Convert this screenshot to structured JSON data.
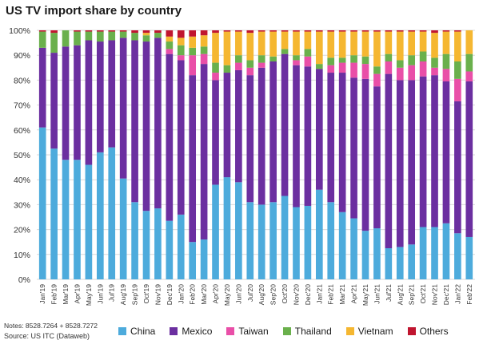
{
  "chart_data": {
    "type": "bar",
    "stacked": true,
    "title": "US TV import share by country",
    "y_ticks": [
      "0%",
      "10%",
      "20%",
      "30%",
      "40%",
      "50%",
      "60%",
      "70%",
      "80%",
      "90%",
      "100%"
    ],
    "ylim": [
      0,
      100
    ],
    "grid": true,
    "legend_position": "bottom",
    "categories": [
      "Jan'19",
      "Feb'19",
      "Mar'19",
      "Apr'19",
      "May'19",
      "Jun'19",
      "Jul'19",
      "Aug'19",
      "Sep'19",
      "Oct'19",
      "Nov'19",
      "Dec'19",
      "Jan'20",
      "Feb'20",
      "Mar'20",
      "Apr'20",
      "May'20",
      "Jun'20",
      "Jul'20",
      "Aug'20",
      "Sep'20",
      "Oct'20",
      "Nov'20",
      "Dec'20",
      "Jan'21",
      "Feb'21",
      "Mar'21",
      "Apr'21",
      "May'21",
      "Jun'21",
      "Jul'21",
      "Aug'21",
      "Sep'21",
      "Oct'21",
      "Nov'21",
      "Dec'21",
      "Jan'22",
      "Feb'22"
    ],
    "visible_x_labels": [
      "Jan'19",
      "Feb'19",
      "Mar'19",
      "Apr'19",
      "May'19",
      "Jun'19",
      "Jul'19",
      "Aug'19",
      "Sep'19",
      "Oct'19",
      "Nov'19",
      "Dec'19",
      "Jan'20",
      "Feb'20",
      "Mar'20",
      "Apr'20",
      "May'20",
      "Jun'20",
      "Jul'20",
      "Aug'20",
      "Sep'20",
      "Oct'20",
      "Nov'20",
      "Dec'20",
      "Jan'21",
      "Feb'21",
      "Mar'21",
      "Apr'21",
      "May'21",
      "Jun'21",
      "Jul'21",
      "Aug'21",
      "Sep'21",
      "Oct'21",
      "Nov'21",
      "Dec'21",
      "Jan'22",
      "Feb'22"
    ],
    "series": [
      {
        "name": "China",
        "color": "#4dabdc",
        "values": [
          61,
          52.5,
          48,
          48,
          46,
          51,
          53,
          40.5,
          31,
          27.5,
          28.5,
          23.5,
          26,
          15,
          16,
          38,
          41,
          39,
          31,
          30,
          31,
          33.5,
          29,
          29.5,
          36,
          31,
          27,
          24.5,
          19.5,
          20.5,
          12.5,
          13,
          14,
          21,
          21,
          22.5,
          18.5,
          17
        ]
      },
      {
        "name": "Mexico",
        "color": "#6b2fa0",
        "values": [
          32,
          38.5,
          45.5,
          46,
          50,
          44.5,
          43,
          56.5,
          65,
          68,
          68.5,
          67,
          62,
          67,
          70.5,
          42,
          42,
          45,
          51,
          55,
          56.5,
          57,
          57,
          56,
          48.5,
          52,
          56,
          56.5,
          61,
          57,
          70,
          67,
          66,
          60.5,
          61,
          57,
          53,
          62.5
        ]
      },
      {
        "name": "Taiwan",
        "color": "#e94fa8",
        "values": [
          0,
          0,
          0,
          0,
          0,
          0,
          0,
          0,
          0,
          0,
          0,
          2,
          2,
          8,
          4,
          3,
          0,
          3,
          3,
          2,
          0,
          0,
          2,
          4,
          0,
          3,
          4,
          6,
          6,
          5,
          5,
          5,
          6,
          6,
          3,
          5,
          9,
          4
        ]
      },
      {
        "name": "Thailand",
        "color": "#6ab04c",
        "values": [
          6.5,
          8,
          6.5,
          5.5,
          3.5,
          4,
          3.5,
          2.5,
          3,
          2.5,
          2,
          3,
          4,
          3,
          3,
          4,
          3,
          3,
          3,
          3,
          2,
          2,
          2,
          3,
          2,
          3,
          2,
          3,
          3,
          3,
          3,
          3,
          4,
          4,
          4,
          6,
          7,
          7
        ]
      },
      {
        "name": "Vietnam",
        "color": "#f5b731",
        "values": [
          0,
          0,
          0,
          0,
          0,
          0,
          0,
          0,
          0,
          1,
          0,
          2,
          3,
          4.5,
          4.5,
          12,
          13.5,
          9.5,
          11,
          9.5,
          10,
          7,
          9.5,
          7,
          13,
          10.5,
          10.5,
          9.5,
          10,
          14,
          9,
          11.5,
          9.5,
          8,
          10,
          9,
          12,
          9.5
        ]
      },
      {
        "name": "Others",
        "color": "#c0152f",
        "values": [
          0.5,
          1,
          0,
          0.5,
          0.5,
          0.5,
          0.5,
          0.5,
          1,
          1,
          1,
          2.5,
          3,
          2.5,
          2,
          1,
          0.5,
          0.5,
          1,
          0.5,
          0.5,
          0.5,
          0.5,
          0.5,
          0.5,
          0.5,
          0.5,
          0.5,
          0.5,
          0.5,
          0.5,
          0.5,
          0.5,
          0.5,
          1,
          0.5,
          0.5,
          0
        ]
      }
    ],
    "notes": "Notes: 8528.7264 + 8528.7272",
    "source": "Source: US ITC (Dataweb)"
  }
}
